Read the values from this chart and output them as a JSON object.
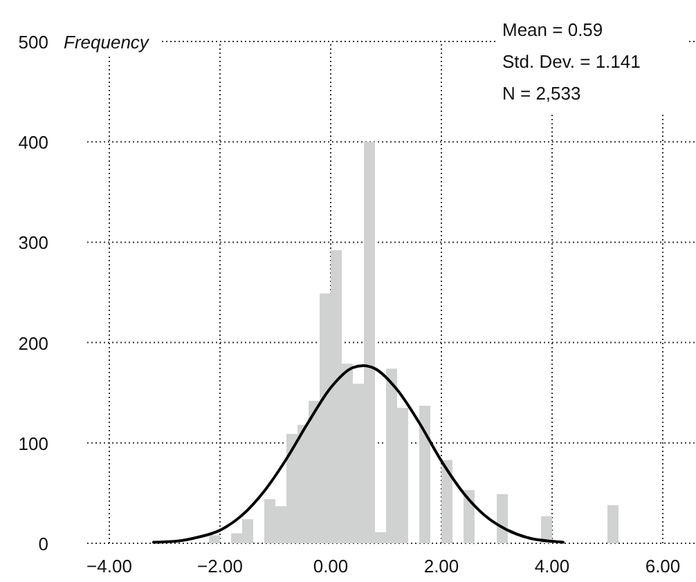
{
  "chart_data": {
    "type": "histogram",
    "ylabel": "Frequency",
    "bins": [
      -2.2,
      -2.0,
      -1.8,
      -1.6,
      -1.4,
      -1.2,
      -1.0,
      -0.8,
      -0.6,
      -0.4,
      -0.2,
      0.0,
      0.2,
      0.4,
      0.6,
      0.8,
      1.0,
      1.2,
      1.4,
      1.6,
      1.8,
      2.0,
      2.2,
      2.4,
      2.6,
      2.8,
      3.0,
      3.2,
      3.4,
      3.6,
      3.8,
      4.0,
      4.2,
      4.4,
      4.6,
      4.8,
      5.0,
      5.2
    ],
    "values": [
      8,
      0,
      10,
      24,
      0,
      44,
      37,
      109,
      118,
      142,
      249,
      292,
      179,
      159,
      400,
      11,
      174,
      135,
      null,
      137,
      0,
      83,
      0,
      53,
      null,
      0,
      49,
      0,
      0,
      null,
      27,
      null,
      0,
      0,
      null,
      0,
      38
    ],
    "color": "#d0d2d1",
    "series": [
      {
        "type": "line",
        "color": "#000000",
        "x": [
          -3.2,
          -2.8,
          -2.4,
          -2.0,
          -1.6,
          -1.2,
          -0.8,
          -0.4,
          0.0,
          0.4,
          0.59,
          0.8,
          1.2,
          1.6,
          2.0,
          2.4,
          2.8,
          3.2,
          3.6,
          4.0,
          4.2
        ],
        "values": [
          1,
          2,
          6,
          13,
          28,
          52,
          84,
          121,
          155,
          175,
          177,
          174,
          153,
          120,
          82,
          50,
          27,
          13,
          5,
          2,
          1
        ]
      }
    ],
    "xlim": [
      -4.4,
      6.6
    ],
    "xticks": [
      {
        "value": -4,
        "label": "−4.00"
      },
      {
        "value": -2,
        "label": "−2.00"
      },
      {
        "value": 0,
        "label": "0.00"
      },
      {
        "value": 2,
        "label": "2.00"
      },
      {
        "value": 4,
        "label": "4.00"
      },
      {
        "value": 6,
        "label": "6.00"
      }
    ],
    "ylim": [
      0,
      500
    ],
    "yticks": [
      0,
      100,
      200,
      300,
      400,
      500
    ],
    "grid": true,
    "line_style": "solid",
    "annotations": [
      "Mean = 0.59",
      "Std. Dev. = 1.141",
      "N = 2,533"
    ]
  }
}
